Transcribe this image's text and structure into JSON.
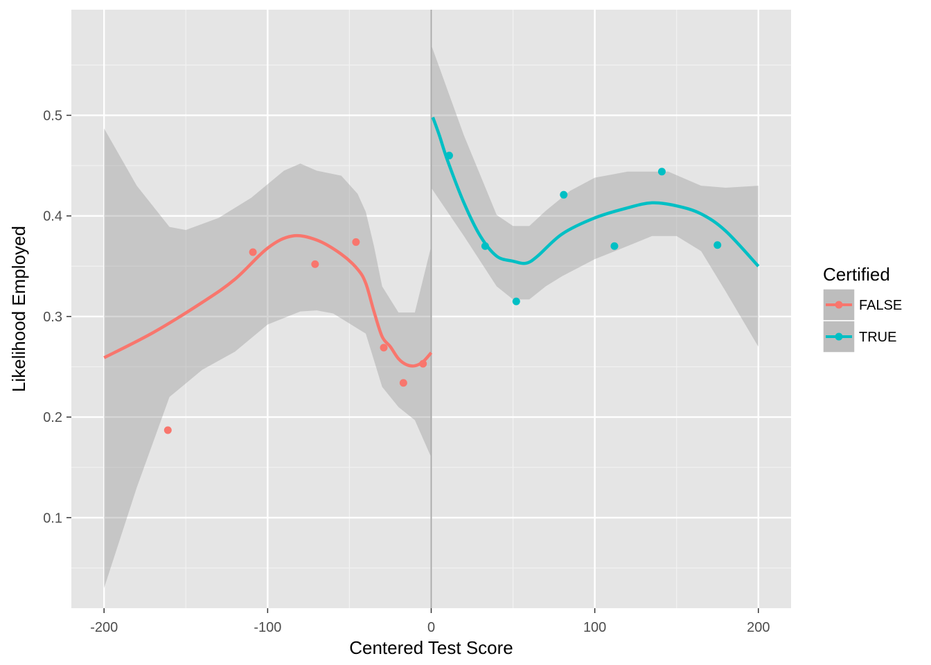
{
  "chart_data": {
    "type": "scatter",
    "xlabel": "Centered Test Score",
    "ylabel": "Likelihood Employed",
    "xlim": [
      -220,
      220
    ],
    "ylim": [
      0.01,
      0.605
    ],
    "x_ticks": [
      -200,
      -100,
      0,
      100,
      200
    ],
    "x_tick_labels": [
      "-200",
      "-100",
      "0",
      "100",
      "200"
    ],
    "y_ticks": [
      0.1,
      0.2,
      0.3,
      0.4,
      0.5
    ],
    "y_tick_labels": [
      "0.1",
      "0.2",
      "0.3",
      "0.4",
      "0.5"
    ],
    "cutoff_x": 0,
    "grid": true,
    "legend": {
      "title": "Certified",
      "position": "right",
      "entries": [
        "FALSE",
        "TRUE"
      ]
    },
    "series": [
      {
        "name": "FALSE",
        "color": "#F8766D",
        "points": [
          [
            -161,
            0.187
          ],
          [
            -109,
            0.364
          ],
          [
            -71,
            0.352
          ],
          [
            -46,
            0.374
          ],
          [
            -29,
            0.269
          ],
          [
            -17,
            0.234
          ],
          [
            -5,
            0.253
          ]
        ],
        "smooth": [
          [
            -200,
            0.259
          ],
          [
            -170,
            0.284
          ],
          [
            -140,
            0.314
          ],
          [
            -120,
            0.337
          ],
          [
            -100,
            0.368
          ],
          [
            -85,
            0.38
          ],
          [
            -70,
            0.376
          ],
          [
            -55,
            0.362
          ],
          [
            -45,
            0.347
          ],
          [
            -40,
            0.333
          ],
          [
            -35,
            0.305
          ],
          [
            -30,
            0.28
          ],
          [
            -25,
            0.27
          ],
          [
            -20,
            0.258
          ],
          [
            -15,
            0.252
          ],
          [
            -10,
            0.251
          ],
          [
            -5,
            0.255
          ],
          [
            0,
            0.264
          ]
        ],
        "ribbon_upper": [
          [
            -200,
            0.487
          ],
          [
            -180,
            0.43
          ],
          [
            -160,
            0.389
          ],
          [
            -150,
            0.386
          ],
          [
            -130,
            0.398
          ],
          [
            -110,
            0.418
          ],
          [
            -90,
            0.445
          ],
          [
            -80,
            0.452
          ],
          [
            -70,
            0.445
          ],
          [
            -55,
            0.44
          ],
          [
            -45,
            0.422
          ],
          [
            -40,
            0.404
          ],
          [
            -35,
            0.37
          ],
          [
            -30,
            0.33
          ],
          [
            -20,
            0.304
          ],
          [
            -10,
            0.304
          ],
          [
            0,
            0.37
          ]
        ],
        "ribbon_lower": [
          [
            0,
            0.16
          ],
          [
            -10,
            0.197
          ],
          [
            -20,
            0.21
          ],
          [
            -30,
            0.23
          ],
          [
            -40,
            0.283
          ],
          [
            -50,
            0.293
          ],
          [
            -60,
            0.303
          ],
          [
            -70,
            0.306
          ],
          [
            -80,
            0.305
          ],
          [
            -100,
            0.292
          ],
          [
            -120,
            0.265
          ],
          [
            -140,
            0.247
          ],
          [
            -160,
            0.22
          ],
          [
            -180,
            0.13
          ],
          [
            -200,
            0.03
          ]
        ]
      },
      {
        "name": "TRUE",
        "color": "#00BFC4",
        "points": [
          [
            11,
            0.46
          ],
          [
            33,
            0.37
          ],
          [
            52,
            0.315
          ],
          [
            81,
            0.421
          ],
          [
            112,
            0.37
          ],
          [
            141,
            0.444
          ],
          [
            175,
            0.371
          ]
        ],
        "smooth": [
          [
            1,
            0.498
          ],
          [
            5,
            0.48
          ],
          [
            10,
            0.455
          ],
          [
            20,
            0.413
          ],
          [
            30,
            0.38
          ],
          [
            40,
            0.36
          ],
          [
            50,
            0.355
          ],
          [
            58,
            0.353
          ],
          [
            65,
            0.36
          ],
          [
            80,
            0.382
          ],
          [
            100,
            0.398
          ],
          [
            120,
            0.408
          ],
          [
            135,
            0.413
          ],
          [
            150,
            0.41
          ],
          [
            165,
            0.402
          ],
          [
            180,
            0.385
          ],
          [
            200,
            0.35
          ]
        ],
        "ribbon_upper": [
          [
            0,
            0.57
          ],
          [
            20,
            0.48
          ],
          [
            40,
            0.401
          ],
          [
            50,
            0.39
          ],
          [
            60,
            0.39
          ],
          [
            70,
            0.405
          ],
          [
            85,
            0.425
          ],
          [
            100,
            0.438
          ],
          [
            120,
            0.444
          ],
          [
            145,
            0.444
          ],
          [
            165,
            0.43
          ],
          [
            180,
            0.428
          ],
          [
            200,
            0.43
          ]
        ],
        "ribbon_lower": [
          [
            200,
            0.27
          ],
          [
            180,
            0.325
          ],
          [
            165,
            0.365
          ],
          [
            150,
            0.38
          ],
          [
            135,
            0.38
          ],
          [
            120,
            0.37
          ],
          [
            100,
            0.357
          ],
          [
            80,
            0.34
          ],
          [
            70,
            0.33
          ],
          [
            60,
            0.317
          ],
          [
            50,
            0.317
          ],
          [
            40,
            0.33
          ],
          [
            20,
            0.38
          ],
          [
            0,
            0.428
          ]
        ]
      }
    ]
  }
}
